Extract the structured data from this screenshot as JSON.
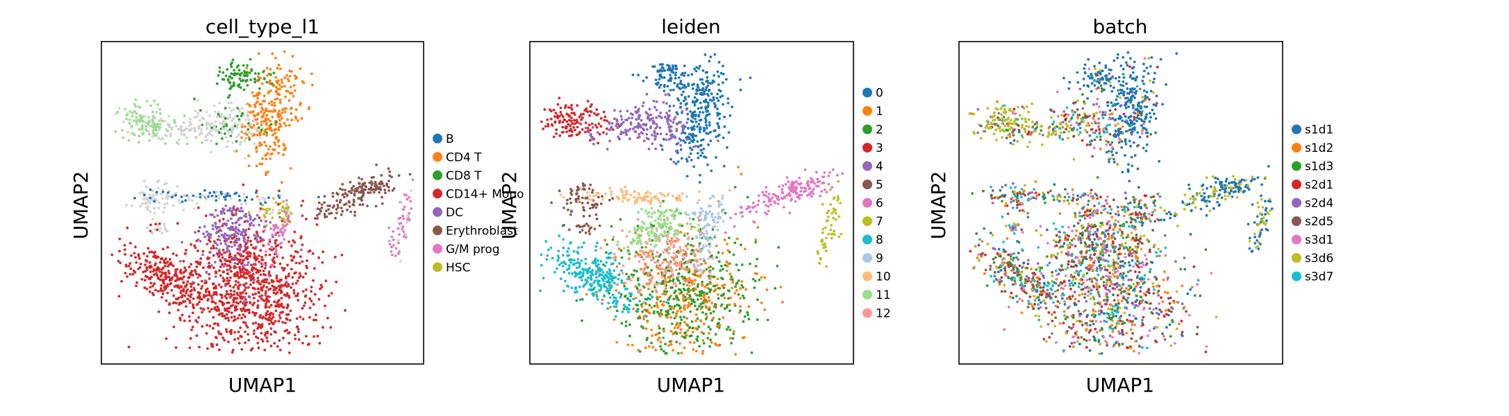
{
  "chart_data": [
    {
      "type": "scatter",
      "title": "cell_type_l1",
      "xlabel": "UMAP1",
      "ylabel": "UMAP2",
      "legend_placement": "right",
      "categories": [
        "B",
        "CD4 T",
        "CD8 T",
        "CD14+ Mono",
        "DC",
        "Erythroblast",
        "G/M prog",
        "HSC"
      ],
      "colors": [
        "#1f77b4",
        "#ff7f0e",
        "#2ca02c",
        "#d62728",
        "#9467bd",
        "#8c564b",
        "#e377c2",
        "#bcbd22"
      ],
      "unlabeled_color": "#d3d3d3"
    },
    {
      "type": "scatter",
      "title": "leiden",
      "xlabel": "UMAP1",
      "ylabel": "UMAP2",
      "legend_placement": "right",
      "categories": [
        "0",
        "1",
        "2",
        "3",
        "4",
        "5",
        "6",
        "7",
        "8",
        "9",
        "10",
        "11",
        "12"
      ],
      "colors": [
        "#1f77b4",
        "#ff7f0e",
        "#2ca02c",
        "#d62728",
        "#9467bd",
        "#8c564b",
        "#e377c2",
        "#bcbd22",
        "#17becf",
        "#aec7e8",
        "#ffbb78",
        "#98df8a",
        "#ff9896"
      ]
    },
    {
      "type": "scatter",
      "title": "batch",
      "xlabel": "UMAP1",
      "ylabel": "UMAP2",
      "legend_placement": "right",
      "categories": [
        "s1d1",
        "s1d2",
        "s1d3",
        "s2d1",
        "s2d4",
        "s2d5",
        "s3d1",
        "s3d6",
        "s3d7"
      ],
      "colors": [
        "#1f77b4",
        "#ff7f0e",
        "#2ca02c",
        "#d62728",
        "#9467bd",
        "#8c564b",
        "#e377c2",
        "#bcbd22",
        "#17becf"
      ]
    }
  ]
}
